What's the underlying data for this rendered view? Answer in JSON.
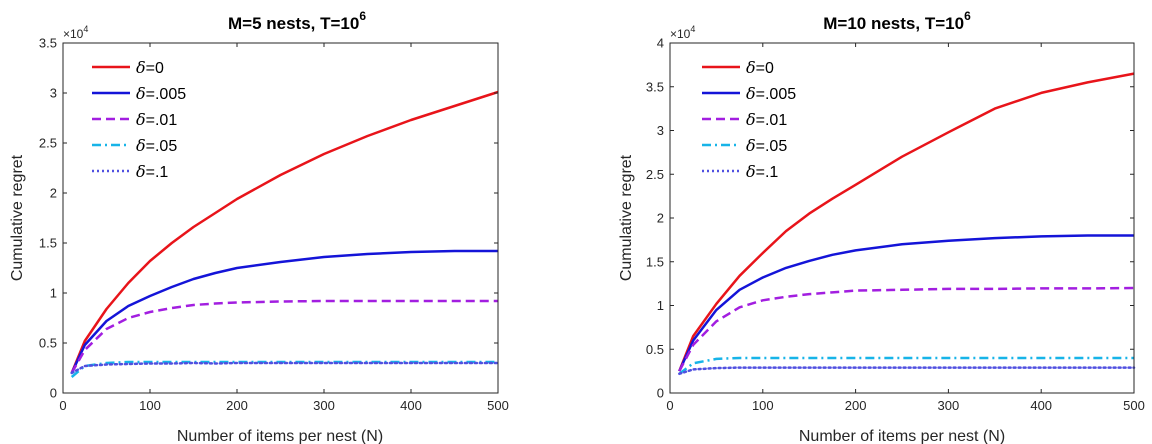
{
  "chart_data": [
    {
      "type": "line",
      "title": {
        "text": "M=5 nests, T=10",
        "sup": "6"
      },
      "xlabel": "Number of items per nest (N)",
      "ylabel": "Cumulative regret",
      "y_multiplier": {
        "base": "×10",
        "exp": "4"
      },
      "xlim": [
        0,
        500
      ],
      "ylim": [
        0,
        35000
      ],
      "x_ticks": [
        0,
        100,
        200,
        300,
        400,
        500
      ],
      "x_tick_labels": [
        "0",
        "100",
        "200",
        "300",
        "400",
        "500"
      ],
      "y_ticks": [
        0,
        5000,
        10000,
        15000,
        20000,
        25000,
        30000,
        35000
      ],
      "y_tick_labels": [
        "0",
        "0.5",
        "1",
        "1.5",
        "2",
        "2.5",
        "3",
        "3.5"
      ],
      "legend_position": "top-left",
      "x": [
        10,
        25,
        50,
        75,
        100,
        125,
        150,
        175,
        200,
        250,
        300,
        350,
        400,
        450,
        500
      ],
      "series": [
        {
          "name": "=0",
          "color": "#e8141a",
          "dash": "solid",
          "values": [
            2000,
            5200,
            8400,
            11000,
            13200,
            15000,
            16600,
            18000,
            19400,
            21800,
            23900,
            25700,
            27300,
            28700,
            30100
          ]
        },
        {
          "name": "=.005",
          "color": "#1414d8",
          "dash": "solid",
          "values": [
            2000,
            4800,
            7200,
            8700,
            9700,
            10600,
            11400,
            12000,
            12500,
            13100,
            13600,
            13900,
            14100,
            14200,
            14200
          ]
        },
        {
          "name": "=.01",
          "color": "#a21ee0",
          "dash": "dashed",
          "values": [
            2000,
            4300,
            6400,
            7500,
            8100,
            8500,
            8800,
            8950,
            9050,
            9150,
            9200,
            9200,
            9200,
            9200,
            9200
          ]
        },
        {
          "name": "=.05",
          "color": "#17b4e8",
          "dash": "dashdot",
          "values": [
            1600,
            2700,
            3000,
            3100,
            3100,
            3100,
            3100,
            3100,
            3100,
            3100,
            3100,
            3100,
            3100,
            3100,
            3100
          ]
        },
        {
          "name": "=.1",
          "color": "#5050e0",
          "dash": "dotted",
          "values": [
            2000,
            2700,
            2850,
            2900,
            2950,
            2950,
            3000,
            2950,
            3000,
            3000,
            3000,
            3000,
            3000,
            3000,
            3000
          ]
        }
      ]
    },
    {
      "type": "line",
      "title": {
        "text": "M=10 nests, T=10",
        "sup": "6"
      },
      "xlabel": "Number of items per nest (N)",
      "ylabel": "Cumulative regret",
      "y_multiplier": {
        "base": "×10",
        "exp": "4"
      },
      "xlim": [
        0,
        500
      ],
      "ylim": [
        0,
        40000
      ],
      "x_ticks": [
        0,
        100,
        200,
        300,
        400,
        500
      ],
      "x_tick_labels": [
        "0",
        "100",
        "200",
        "300",
        "400",
        "500"
      ],
      "y_ticks": [
        0,
        5000,
        10000,
        15000,
        20000,
        25000,
        30000,
        35000,
        40000
      ],
      "y_tick_labels": [
        "0",
        "0.5",
        "1",
        "1.5",
        "2",
        "2.5",
        "3",
        "3.5",
        "4"
      ],
      "legend_position": "top-left",
      "x": [
        10,
        25,
        50,
        75,
        100,
        125,
        150,
        175,
        200,
        250,
        300,
        350,
        400,
        450,
        500
      ],
      "series": [
        {
          "name": "=0",
          "color": "#e8141a",
          "dash": "solid",
          "values": [
            2500,
            6500,
            10200,
            13400,
            16000,
            18500,
            20500,
            22200,
            23800,
            27000,
            29800,
            32500,
            34300,
            35500,
            36500
          ]
        },
        {
          "name": "=.005",
          "color": "#1414d8",
          "dash": "solid",
          "values": [
            2500,
            6000,
            9500,
            11800,
            13200,
            14300,
            15100,
            15800,
            16300,
            17000,
            17400,
            17700,
            17900,
            18000,
            18000
          ]
        },
        {
          "name": "=.01",
          "color": "#a21ee0",
          "dash": "dashed",
          "values": [
            2500,
            5500,
            8200,
            9800,
            10600,
            11000,
            11300,
            11500,
            11700,
            11800,
            11900,
            11900,
            11950,
            11950,
            12000
          ]
        },
        {
          "name": "=.05",
          "color": "#17b4e8",
          "dash": "dashdot",
          "values": [
            2200,
            3400,
            3900,
            4000,
            4000,
            4000,
            4000,
            4000,
            4000,
            4000,
            4000,
            4000,
            4000,
            4000,
            4000
          ]
        },
        {
          "name": "=.1",
          "color": "#5050e0",
          "dash": "dotted",
          "values": [
            2200,
            2700,
            2850,
            2900,
            2900,
            2900,
            2900,
            2900,
            2900,
            2900,
            2900,
            2900,
            2900,
            2900,
            2900
          ]
        }
      ]
    }
  ]
}
